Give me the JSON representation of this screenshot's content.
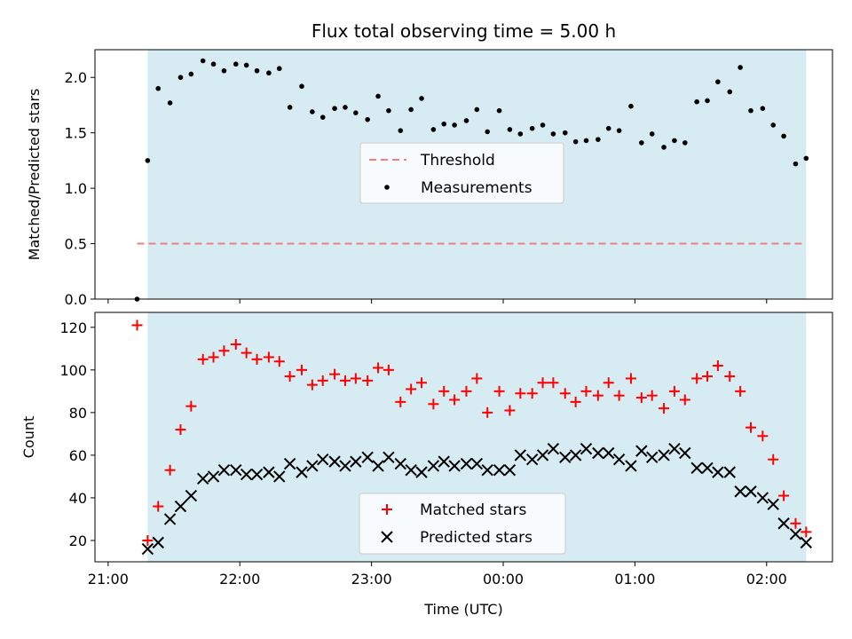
{
  "chart_data": [
    {
      "type": "scatter",
      "title": "Flux total observing time = 5.00 h",
      "xlabel": "",
      "ylabel": "Matched/Predicted stars",
      "ylim": [
        0,
        2.25
      ],
      "yticks": [
        0.0,
        0.5,
        1.0,
        1.5,
        2.0
      ],
      "ytick_labels": [
        "0.0",
        "0.5",
        "1.0",
        "1.5",
        "2.0"
      ],
      "xlim": [
        -0.1,
        5.5
      ],
      "xticks": [
        0,
        1,
        2,
        3,
        4,
        5
      ],
      "x_units": "hours since 21:00 UTC",
      "shaded_span": [
        0.3,
        5.3
      ],
      "shade_color": "#add8e6",
      "legend": {
        "position": "center",
        "threshold_label": "Threshold",
        "measurements_label": "Measurements"
      },
      "threshold": {
        "name": "Threshold",
        "value": 0.5,
        "x_range": [
          0.22,
          5.3
        ],
        "color": "#f08080"
      },
      "series": [
        {
          "name": "Measurements",
          "color": "#000000",
          "x": [
            0.22,
            0.3,
            0.38,
            0.47,
            0.55,
            0.63,
            0.72,
            0.8,
            0.88,
            0.97,
            1.05,
            1.13,
            1.22,
            1.3,
            1.38,
            1.47,
            1.55,
            1.63,
            1.72,
            1.8,
            1.88,
            1.97,
            2.05,
            2.13,
            2.22,
            2.3,
            2.38,
            2.47,
            2.55,
            2.63,
            2.72,
            2.8,
            2.88,
            2.97,
            3.05,
            3.13,
            3.22,
            3.3,
            3.38,
            3.47,
            3.55,
            3.63,
            3.72,
            3.8,
            3.88,
            3.97,
            4.05,
            4.13,
            4.22,
            4.3,
            4.38,
            4.47,
            4.55,
            4.63,
            4.72,
            4.8,
            4.88,
            4.97,
            5.05,
            5.13,
            5.22,
            5.3
          ],
          "y": [
            0.0,
            1.25,
            1.9,
            1.77,
            2.0,
            2.03,
            2.15,
            2.12,
            2.06,
            2.12,
            2.11,
            2.06,
            2.04,
            2.08,
            1.73,
            1.92,
            1.69,
            1.64,
            1.72,
            1.73,
            1.68,
            1.62,
            1.83,
            1.7,
            1.52,
            1.71,
            1.81,
            1.53,
            1.58,
            1.57,
            1.61,
            1.71,
            1.51,
            1.7,
            1.53,
            1.49,
            1.54,
            1.57,
            1.49,
            1.5,
            1.42,
            1.43,
            1.44,
            1.54,
            1.52,
            1.74,
            1.41,
            1.49,
            1.37,
            1.43,
            1.41,
            1.78,
            1.79,
            1.96,
            1.87,
            2.09,
            1.7,
            1.72,
            1.57,
            1.47,
            1.22,
            1.27
          ]
        }
      ]
    },
    {
      "type": "scatter",
      "title": "",
      "xlabel": "Time (UTC)",
      "ylabel": "Count",
      "ylim": [
        10,
        127
      ],
      "yticks": [
        20,
        40,
        60,
        80,
        100,
        120
      ],
      "ytick_labels": [
        "20",
        "40",
        "60",
        "80",
        "100",
        "120"
      ],
      "xlim": [
        -0.1,
        5.5
      ],
      "xticks": [
        0,
        1,
        2,
        3,
        4,
        5
      ],
      "xtick_labels": [
        "21:00",
        "22:00",
        "23:00",
        "00:00",
        "01:00",
        "02:00"
      ],
      "x_units": "hours since 21:00 UTC",
      "shaded_span": [
        0.3,
        5.3
      ],
      "shade_color": "#add8e6",
      "legend": {
        "position": "lower center",
        "matched_label": "Matched stars",
        "predicted_label": "Predicted stars"
      },
      "series": [
        {
          "name": "Matched stars",
          "marker": "+",
          "color": "#ff0000",
          "x": [
            0.22,
            0.3,
            0.38,
            0.47,
            0.55,
            0.63,
            0.72,
            0.8,
            0.88,
            0.97,
            1.05,
            1.13,
            1.22,
            1.3,
            1.38,
            1.47,
            1.55,
            1.63,
            1.72,
            1.8,
            1.88,
            1.97,
            2.05,
            2.13,
            2.22,
            2.3,
            2.38,
            2.47,
            2.55,
            2.63,
            2.72,
            2.8,
            2.88,
            2.97,
            3.05,
            3.13,
            3.22,
            3.3,
            3.38,
            3.47,
            3.55,
            3.63,
            3.72,
            3.8,
            3.88,
            3.97,
            4.05,
            4.13,
            4.22,
            4.3,
            4.38,
            4.47,
            4.55,
            4.63,
            4.72,
            4.8,
            4.88,
            4.97,
            5.05,
            5.13,
            5.22,
            5.3
          ],
          "y": [
            121,
            20,
            36,
            53,
            72,
            83,
            105,
            106,
            109,
            112,
            108,
            105,
            106,
            104,
            97,
            100,
            93,
            95,
            98,
            95,
            96,
            95,
            101,
            100,
            85,
            91,
            94,
            84,
            90,
            86,
            90,
            96,
            80,
            90,
            81,
            89,
            89,
            94,
            94,
            89,
            85,
            90,
            88,
            94,
            88,
            96,
            87,
            88,
            82,
            90,
            86,
            96,
            97,
            102,
            97,
            90,
            73,
            69,
            58,
            41,
            28,
            24
          ]
        },
        {
          "name": "Predicted stars",
          "marker": "x",
          "color": "#000000",
          "x": [
            0.3,
            0.38,
            0.47,
            0.55,
            0.63,
            0.72,
            0.8,
            0.88,
            0.97,
            1.05,
            1.13,
            1.22,
            1.3,
            1.38,
            1.47,
            1.55,
            1.63,
            1.72,
            1.8,
            1.88,
            1.97,
            2.05,
            2.13,
            2.22,
            2.3,
            2.38,
            2.47,
            2.55,
            2.63,
            2.72,
            2.8,
            2.88,
            2.97,
            3.05,
            3.13,
            3.22,
            3.3,
            3.38,
            3.47,
            3.55,
            3.63,
            3.72,
            3.8,
            3.88,
            3.97,
            4.05,
            4.13,
            4.22,
            4.3,
            4.38,
            4.47,
            4.55,
            4.63,
            4.72,
            4.8,
            4.88,
            4.97,
            5.05,
            5.13,
            5.22,
            5.3
          ],
          "y": [
            16,
            19,
            30,
            36,
            41,
            49,
            50,
            53,
            53,
            51,
            51,
            52,
            50,
            56,
            52,
            55,
            58,
            57,
            55,
            57,
            59,
            55,
            59,
            56,
            53,
            52,
            55,
            57,
            55,
            56,
            56,
            53,
            53,
            53,
            60,
            58,
            60,
            63,
            59,
            60,
            63,
            61,
            61,
            58,
            55,
            62,
            59,
            60,
            63,
            61,
            54,
            54,
            52,
            52,
            43,
            43,
            40,
            37,
            28,
            23,
            19
          ]
        }
      ]
    }
  ]
}
